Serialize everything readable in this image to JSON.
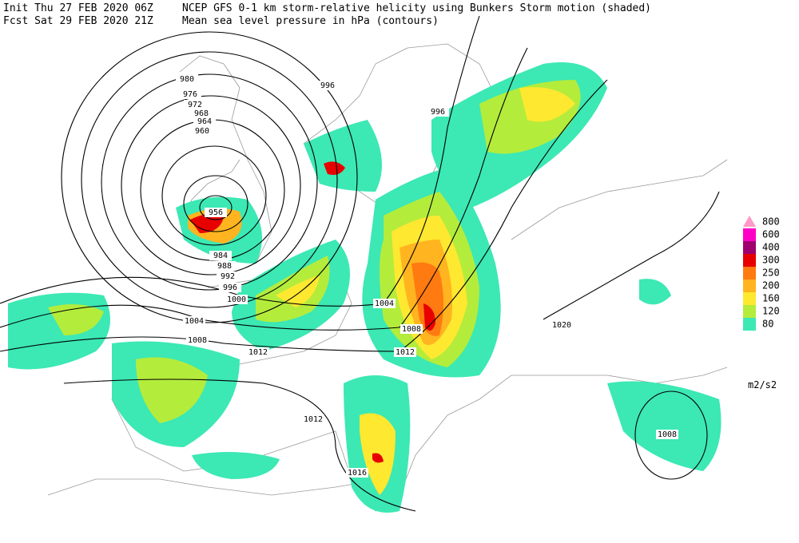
{
  "header": {
    "init": "Init  Thu 27 FEB 2020 06Z",
    "fcst": "Fcst Sat 29 FEB 2020 21Z",
    "title": "NCEP GFS 0-1 km storm-relative helicity using Bunkers Storm motion (shaded)",
    "subtitle": "Mean sea level pressure in hPa (contours)"
  },
  "legend": {
    "unit": "m2/s2",
    "levels": [
      {
        "value": 800,
        "color": "#ff99c8"
      },
      {
        "value": 600,
        "color": "#ff00c8"
      },
      {
        "value": 400,
        "color": "#a0006e"
      },
      {
        "value": 300,
        "color": "#e80000"
      },
      {
        "value": 250,
        "color": "#ff7a10"
      },
      {
        "value": 200,
        "color": "#ffb420"
      },
      {
        "value": 160,
        "color": "#ffe830"
      },
      {
        "value": 120,
        "color": "#b4ec3c"
      },
      {
        "value": 80,
        "color": "#3ce8b4"
      }
    ]
  },
  "contour_labels": [
    980,
    976,
    972,
    968,
    964,
    960,
    996,
    996,
    956,
    984,
    988,
    992,
    996,
    1000,
    1004,
    1008,
    1012,
    1004,
    1008,
    1012,
    1020,
    1012,
    1016,
    1008
  ]
}
